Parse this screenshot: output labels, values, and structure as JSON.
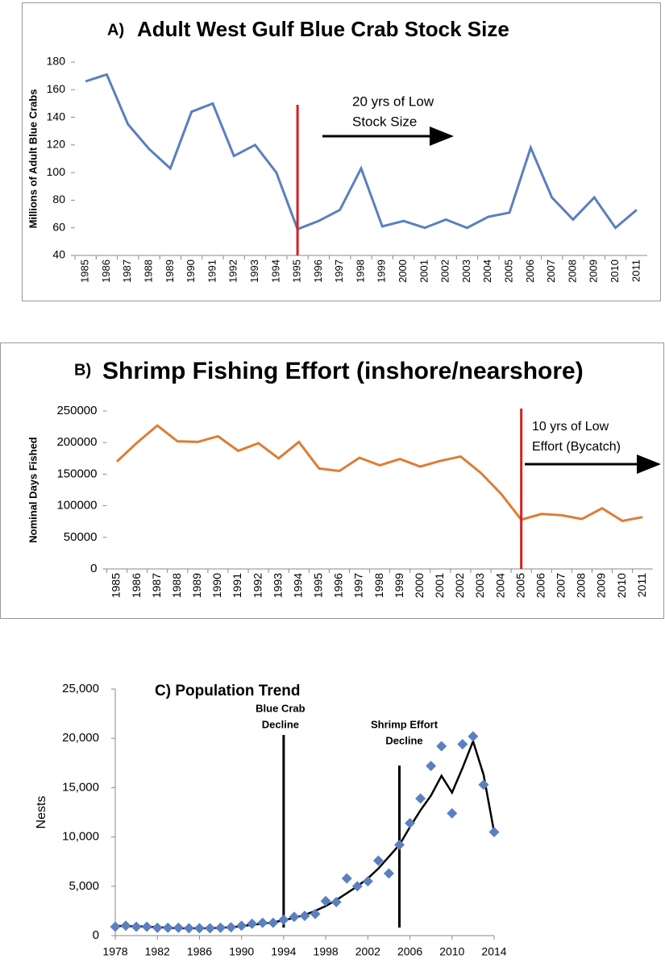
{
  "chart_data": [
    {
      "type": "line",
      "label": "A)",
      "title": "Adult West Gulf Blue Crab Stock Size",
      "y_label": "Millions of Adult Blue Crabs",
      "categories": [
        "1985",
        "1986",
        "1987",
        "1988",
        "1989",
        "1990",
        "1991",
        "1992",
        "1993",
        "1994",
        "1995",
        "1996",
        "1997",
        "1998",
        "1999",
        "2000",
        "2001",
        "2002",
        "2003",
        "2004",
        "2005",
        "2006",
        "2007",
        "2008",
        "2009",
        "2010",
        "2011"
      ],
      "values": [
        166,
        171,
        135,
        117,
        103,
        144,
        150,
        112,
        120,
        100,
        59,
        65,
        73,
        103,
        61,
        65,
        60,
        66,
        60,
        68,
        71,
        118,
        82,
        66,
        82,
        60,
        73
      ],
      "color": "#5b7fbf",
      "ylim": [
        40,
        180
      ],
      "yticks": [
        40,
        60,
        80,
        100,
        120,
        140,
        160,
        180
      ],
      "vline": "1995",
      "vline_color": "#d42020",
      "annotation": [
        "20 yrs of  Low",
        "Stock Size"
      ]
    },
    {
      "type": "line",
      "label": "B)",
      "title": "Shrimp Fishing Effort (inshore/nearshore)",
      "y_label": "Nominal Days Fished",
      "categories": [
        "1985",
        "1986",
        "1987",
        "1988",
        "1989",
        "1990",
        "1991",
        "1992",
        "1993",
        "1994",
        "1995",
        "1996",
        "1997",
        "1998",
        "1999",
        "2000",
        "2001",
        "2002",
        "2003",
        "2004",
        "2005",
        "2006",
        "2007",
        "2008",
        "2009",
        "2010",
        "2011"
      ],
      "values": [
        170000,
        200000,
        227000,
        202000,
        201000,
        210000,
        187000,
        199000,
        175000,
        201000,
        159000,
        155000,
        176000,
        164000,
        174000,
        162000,
        171000,
        178000,
        152000,
        119000,
        78000,
        87000,
        85000,
        79000,
        96000,
        76000,
        82000
      ],
      "color": "#dd7d36",
      "ylim": [
        0,
        250000
      ],
      "yticks": [
        0,
        50000,
        100000,
        150000,
        200000,
        250000
      ],
      "vline": "2005",
      "vline_color": "#d42020",
      "annotation": [
        "10 yrs of Low",
        "Effort (Bycatch)"
      ]
    },
    {
      "type": "scatter",
      "title": "C) Population Trend",
      "y_label": "Nests",
      "x": [
        1978,
        1979,
        1980,
        1981,
        1982,
        1983,
        1984,
        1985,
        1986,
        1987,
        1988,
        1989,
        1990,
        1991,
        1992,
        1993,
        1994,
        1995,
        1996,
        1997,
        1998,
        1999,
        2000,
        2001,
        2002,
        2003,
        2004,
        2005,
        2006,
        2007,
        2008,
        2009,
        2010,
        2011,
        2012,
        2013,
        2014
      ],
      "series": [
        {
          "type": "scatter",
          "color": "#5b7fc0",
          "values": [
            900,
            1000,
            900,
            900,
            800,
            800,
            800,
            750,
            750,
            750,
            800,
            850,
            1000,
            1200,
            1300,
            1300,
            1600,
            1900,
            2000,
            2200,
            3500,
            3400,
            5800,
            5000,
            5500,
            7600,
            6300,
            9200,
            11400,
            13900,
            17200,
            19200,
            12400,
            19400,
            20200,
            15300,
            10500
          ]
        },
        {
          "type": "line",
          "color": "#000000",
          "values": [
            1000,
            950,
            950,
            900,
            850,
            800,
            750,
            750,
            750,
            750,
            800,
            850,
            950,
            1100,
            1200,
            1350,
            1550,
            1800,
            2100,
            2500,
            3000,
            3600,
            4300,
            5000,
            5800,
            6800,
            8000,
            9200,
            11000,
            12700,
            14200,
            16200,
            14500,
            17000,
            19700,
            16300,
            10500
          ]
        }
      ],
      "xlim": [
        1978,
        2014
      ],
      "xticks": [
        1978,
        1982,
        1986,
        1990,
        1994,
        1998,
        2002,
        2006,
        2010,
        2014
      ],
      "ylim": [
        0,
        25000
      ],
      "yticks": [
        0,
        {
          "value": 5000,
          "label": "5,000"
        },
        {
          "value": 10000,
          "label": "10,000"
        },
        {
          "value": 15000,
          "label": "15,000"
        },
        {
          "value": 20000,
          "label": "20,000"
        },
        {
          "value": 25000,
          "label": "25,000"
        }
      ],
      "vlines": [
        {
          "x": 1994,
          "label": [
            "Blue Crab",
            "Decline"
          ]
        },
        {
          "x": 2005,
          "label": [
            "Shrimp Effort",
            "Decline"
          ]
        }
      ]
    }
  ]
}
